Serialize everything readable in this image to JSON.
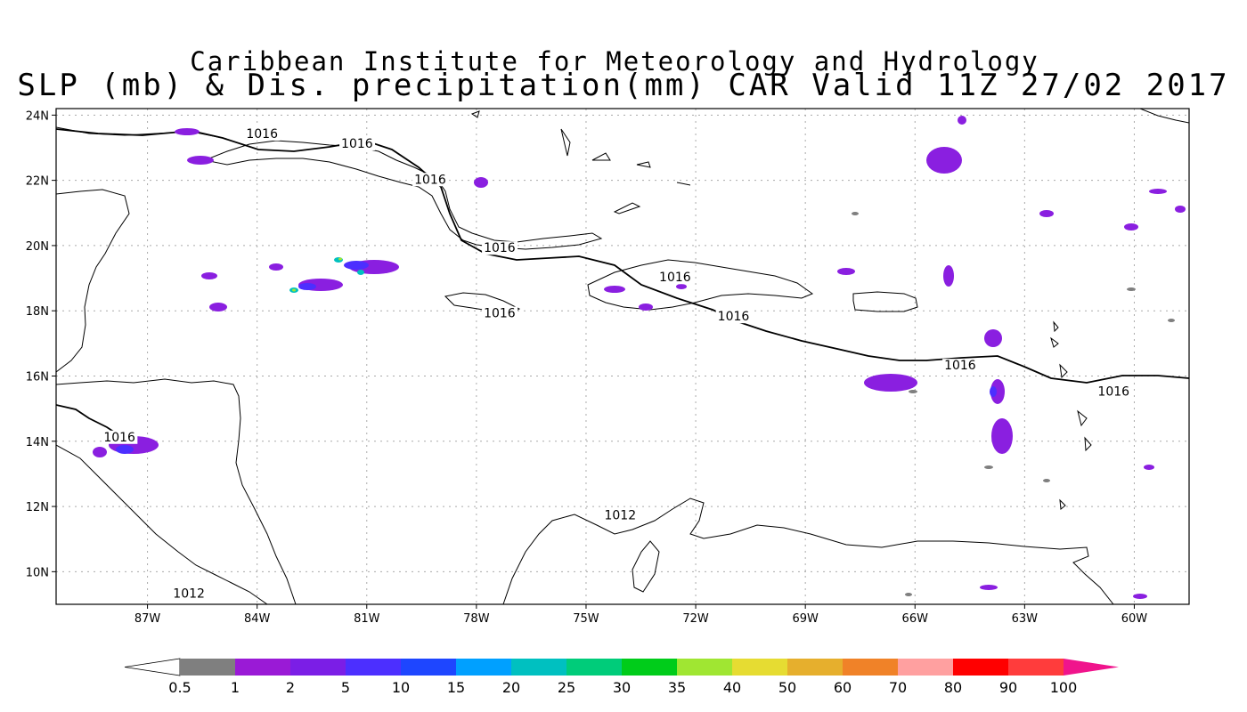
{
  "title_line1": "Caribbean Institute for Meteorology and Hydrology",
  "title_line2": "SLP (mb) & Dis. precipitation(mm) CAR Valid 11Z 27/02 2017",
  "map": {
    "lon_range": [
      -89.5,
      -58.5
    ],
    "lat_range": [
      9.0,
      24.2
    ],
    "lat_ticks": [
      {
        "value": 24,
        "label": "24N"
      },
      {
        "value": 22,
        "label": "22N"
      },
      {
        "value": 20,
        "label": "20N"
      },
      {
        "value": 18,
        "label": "18N"
      },
      {
        "value": 16,
        "label": "16N"
      },
      {
        "value": 14,
        "label": "14N"
      },
      {
        "value": 12,
        "label": "12N"
      },
      {
        "value": 10,
        "label": "10N"
      }
    ],
    "lon_ticks": [
      {
        "value": -87,
        "label": "87W"
      },
      {
        "value": -84,
        "label": "84W"
      },
      {
        "value": -81,
        "label": "81W"
      },
      {
        "value": -78,
        "label": "78W"
      },
      {
        "value": -75,
        "label": "75W"
      },
      {
        "value": -72,
        "label": "72W"
      },
      {
        "value": -69,
        "label": "69W"
      },
      {
        "value": -66,
        "label": "66W"
      },
      {
        "value": -63,
        "label": "63W"
      },
      {
        "value": -60,
        "label": "60W"
      }
    ],
    "isobar_labels": [
      {
        "text": "1016",
        "lon": -84.3,
        "lat": 23.3
      },
      {
        "text": "1016",
        "lon": -81.7,
        "lat": 23.0
      },
      {
        "text": "1016",
        "lon": -79.7,
        "lat": 21.9
      },
      {
        "text": "1016",
        "lon": -77.8,
        "lat": 19.8
      },
      {
        "text": "1016",
        "lon": -73.0,
        "lat": 18.9
      },
      {
        "text": "1016",
        "lon": -77.8,
        "lat": 17.8
      },
      {
        "text": "1016",
        "lon": -71.4,
        "lat": 17.7
      },
      {
        "text": "1016",
        "lon": -65.2,
        "lat": 16.2
      },
      {
        "text": "1016",
        "lon": -61.0,
        "lat": 15.4
      },
      {
        "text": "1016",
        "lon": -88.2,
        "lat": 14.0
      },
      {
        "text": "1012",
        "lon": -74.5,
        "lat": 11.6
      },
      {
        "text": "1012",
        "lon": -86.3,
        "lat": 9.2
      }
    ]
  },
  "colorbar": {
    "colors": [
      "#ffffff",
      "#7f7f7f",
      "#9a1ad6",
      "#7b1ee6",
      "#4c2fff",
      "#1e46ff",
      "#00a0ff",
      "#00c0c0",
      "#00cc7a",
      "#00cc1a",
      "#a0e632",
      "#e6dc32",
      "#e6af2d",
      "#f08228",
      "#ffa0a0",
      "#ff0000",
      "#ff3c3c",
      "#f0148c"
    ],
    "labels": [
      "0.5",
      "1",
      "2",
      "5",
      "10",
      "15",
      "20",
      "25",
      "30",
      "35",
      "40",
      "50",
      "60",
      "70",
      "80",
      "90",
      "100"
    ]
  }
}
